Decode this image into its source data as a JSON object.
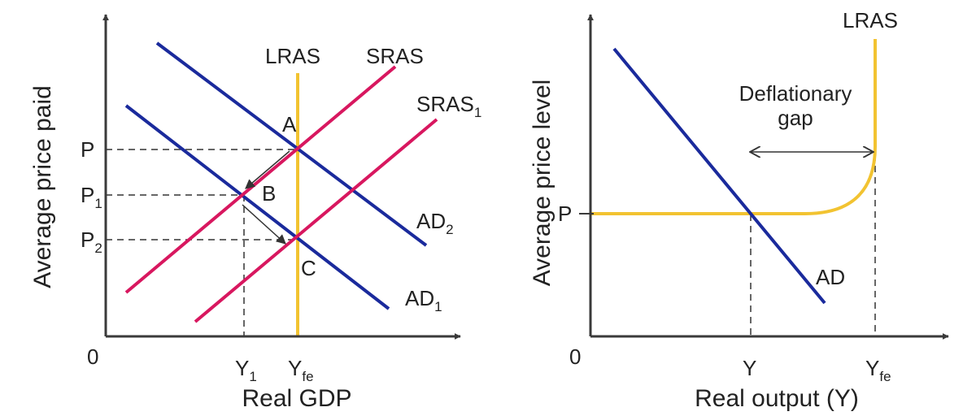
{
  "colors": {
    "ad": "#1a2a9c",
    "sras": "#d8175f",
    "lras": "#f2c331",
    "axis": "#3a3a3a"
  },
  "left": {
    "y_axis_title": "Average price paid",
    "x_axis_title": "Real GDP",
    "origin": "0",
    "curves": {
      "lras": "LRAS",
      "sras": "SRAS",
      "sras1_main": "SRAS",
      "sras1_sub": "1",
      "ad2_main": "AD",
      "ad2_sub": "2",
      "ad1_main": "AD",
      "ad1_sub": "1"
    },
    "points": {
      "a": "A",
      "b": "B",
      "c": "C"
    },
    "y_ticks": {
      "p": "P",
      "p1_main": "P",
      "p1_sub": "1",
      "p2_main": "P",
      "p2_sub": "2"
    },
    "x_ticks": {
      "y1_main": "Y",
      "y1_sub": "1",
      "yfe_main": "Y",
      "yfe_sub": "fe"
    }
  },
  "right": {
    "y_axis_title": "Average price level",
    "x_axis_title": "Real output (Y)",
    "origin": "0",
    "curves": {
      "lras": "LRAS",
      "ad": "AD"
    },
    "gap_label_line1": "Deflationary",
    "gap_label_line2": "gap",
    "y_ticks": {
      "p": "P"
    },
    "x_ticks": {
      "y": "Y",
      "yfe_main": "Y",
      "yfe_sub": "fe"
    }
  }
}
